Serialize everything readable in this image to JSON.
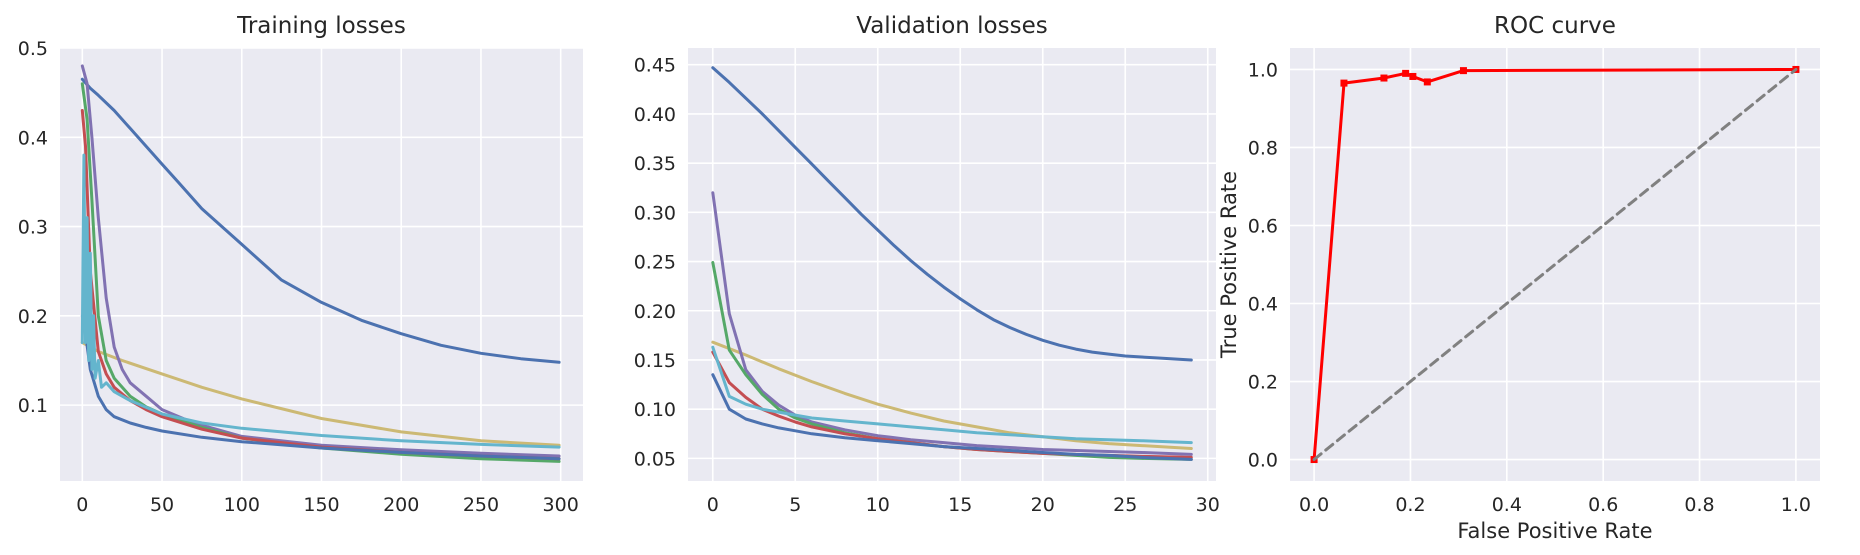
{
  "chart_data": [
    {
      "type": "line",
      "title": "Training losses",
      "xlabel": "",
      "ylabel": "",
      "xlim": [
        -14,
        314
      ],
      "ylim": [
        0.015,
        0.5
      ],
      "xticks": [
        0,
        50,
        100,
        150,
        200,
        250,
        300
      ],
      "yticks": [
        0.1,
        0.2,
        0.3,
        0.4,
        0.5
      ],
      "grid": true,
      "series": [
        {
          "color": "#4c72b0",
          "x": [
            0,
            5,
            10,
            20,
            30,
            40,
            50,
            60,
            75,
            100,
            125,
            150,
            175,
            200,
            225,
            250,
            275,
            299
          ],
          "values": [
            0.465,
            0.455,
            0.447,
            0.43,
            0.41,
            0.39,
            0.37,
            0.35,
            0.32,
            0.28,
            0.24,
            0.215,
            0.195,
            0.18,
            0.167,
            0.158,
            0.152,
            0.148
          ]
        },
        {
          "color": "#ccb974",
          "x": [
            0,
            10,
            25,
            50,
            75,
            100,
            150,
            200,
            250,
            299
          ],
          "values": [
            0.17,
            0.16,
            0.15,
            0.135,
            0.12,
            0.107,
            0.085,
            0.07,
            0.06,
            0.055
          ]
        },
        {
          "color": "#8172b2",
          "x": [
            0,
            3,
            6,
            10,
            15,
            20,
            25,
            30,
            40,
            50,
            70,
            100,
            150,
            200,
            250,
            299
          ],
          "values": [
            0.48,
            0.46,
            0.4,
            0.31,
            0.22,
            0.165,
            0.14,
            0.125,
            0.11,
            0.095,
            0.08,
            0.065,
            0.055,
            0.05,
            0.046,
            0.043
          ]
        },
        {
          "color": "#55a868",
          "x": [
            0,
            3,
            6,
            10,
            15,
            20,
            30,
            40,
            50,
            75,
            100,
            150,
            200,
            250,
            299
          ],
          "values": [
            0.46,
            0.42,
            0.33,
            0.2,
            0.15,
            0.13,
            0.11,
            0.098,
            0.09,
            0.075,
            0.063,
            0.052,
            0.045,
            0.04,
            0.037
          ]
        },
        {
          "color": "#c44e52",
          "x": [
            0,
            2,
            5,
            10,
            15,
            20,
            30,
            40,
            50,
            75,
            100,
            150,
            200,
            250,
            299
          ],
          "values": [
            0.43,
            0.39,
            0.25,
            0.16,
            0.135,
            0.12,
            0.105,
            0.095,
            0.087,
            0.073,
            0.063,
            0.053,
            0.047,
            0.043,
            0.04
          ]
        },
        {
          "color": "#4c72b0",
          "x": [
            0,
            2,
            5,
            10,
            15,
            20,
            30,
            40,
            50,
            75,
            100,
            150,
            200,
            250,
            299
          ],
          "values": [
            0.2,
            0.18,
            0.14,
            0.11,
            0.095,
            0.087,
            0.08,
            0.075,
            0.071,
            0.064,
            0.059,
            0.052,
            0.047,
            0.043,
            0.04
          ]
        },
        {
          "color": "#64b5cd",
          "x": [
            0,
            1,
            2,
            3,
            4,
            5,
            6,
            7,
            8,
            10,
            12,
            15,
            20,
            30,
            50,
            75,
            100,
            150,
            200,
            250,
            299
          ],
          "values": [
            0.17,
            0.38,
            0.17,
            0.31,
            0.15,
            0.27,
            0.14,
            0.2,
            0.13,
            0.15,
            0.12,
            0.125,
            0.115,
            0.105,
            0.09,
            0.08,
            0.074,
            0.066,
            0.06,
            0.056,
            0.053
          ]
        }
      ]
    },
    {
      "type": "line",
      "title": "Validation losses",
      "xlabel": "",
      "ylabel": "",
      "xlim": [
        -1.5,
        30.5
      ],
      "ylim": [
        0.027,
        0.467
      ],
      "xticks": [
        0,
        5,
        10,
        15,
        20,
        25,
        30
      ],
      "yticks": [
        0.05,
        0.1,
        0.15,
        0.2,
        0.25,
        0.3,
        0.35,
        0.4,
        0.45
      ],
      "grid": true,
      "series": [
        {
          "color": "#4c72b0",
          "x": [
            0,
            1,
            2,
            3,
            4,
            5,
            6,
            7,
            8,
            9,
            10,
            11,
            12,
            13,
            14,
            15,
            16,
            17,
            18,
            19,
            20,
            21,
            22,
            23,
            24,
            25,
            26,
            27,
            28,
            29
          ],
          "values": [
            0.447,
            0.432,
            0.416,
            0.4,
            0.383,
            0.366,
            0.349,
            0.332,
            0.315,
            0.298,
            0.282,
            0.266,
            0.251,
            0.237,
            0.224,
            0.212,
            0.201,
            0.191,
            0.183,
            0.176,
            0.17,
            0.165,
            0.161,
            0.158,
            0.156,
            0.154,
            0.153,
            0.152,
            0.151,
            0.15
          ]
        },
        {
          "color": "#ccb974",
          "x": [
            0,
            2,
            4,
            6,
            8,
            10,
            12,
            14,
            16,
            18,
            20,
            22,
            24,
            26,
            29
          ],
          "values": [
            0.168,
            0.155,
            0.141,
            0.128,
            0.116,
            0.105,
            0.096,
            0.088,
            0.082,
            0.076,
            0.072,
            0.068,
            0.065,
            0.063,
            0.06
          ]
        },
        {
          "color": "#8172b2",
          "x": [
            0,
            1,
            2,
            3,
            4,
            5,
            6,
            8,
            10,
            12,
            14,
            16,
            18,
            20,
            22,
            24,
            26,
            29
          ],
          "values": [
            0.32,
            0.197,
            0.14,
            0.118,
            0.104,
            0.094,
            0.087,
            0.079,
            0.073,
            0.069,
            0.066,
            0.063,
            0.061,
            0.059,
            0.058,
            0.057,
            0.056,
            0.054
          ]
        },
        {
          "color": "#55a868",
          "x": [
            0,
            1,
            2,
            3,
            4,
            5,
            6,
            8,
            10,
            12,
            14,
            16,
            18,
            20,
            22,
            24,
            26,
            29
          ],
          "values": [
            0.249,
            0.16,
            0.135,
            0.115,
            0.1,
            0.091,
            0.085,
            0.076,
            0.07,
            0.066,
            0.062,
            0.059,
            0.057,
            0.055,
            0.053,
            0.051,
            0.05,
            0.049
          ]
        },
        {
          "color": "#c44e52",
          "x": [
            0,
            1,
            2,
            3,
            4,
            5,
            6,
            8,
            10,
            12,
            14,
            16,
            18,
            20,
            22,
            24,
            26,
            29
          ],
          "values": [
            0.158,
            0.127,
            0.112,
            0.1,
            0.093,
            0.087,
            0.082,
            0.075,
            0.07,
            0.066,
            0.062,
            0.059,
            0.057,
            0.055,
            0.054,
            0.053,
            0.052,
            0.051
          ]
        },
        {
          "color": "#64b5cd",
          "x": [
            0,
            1,
            2,
            3,
            4,
            5,
            6,
            8,
            10,
            12,
            14,
            16,
            18,
            20,
            22,
            24,
            26,
            29
          ],
          "values": [
            0.163,
            0.113,
            0.105,
            0.1,
            0.097,
            0.094,
            0.091,
            0.088,
            0.085,
            0.082,
            0.079,
            0.076,
            0.074,
            0.072,
            0.07,
            0.069,
            0.068,
            0.066
          ]
        },
        {
          "color": "#4c72b0",
          "x": [
            0,
            1,
            2,
            3,
            4,
            5,
            6,
            8,
            10,
            12,
            14,
            16,
            18,
            20,
            22,
            24,
            26,
            29
          ],
          "values": [
            0.135,
            0.1,
            0.09,
            0.085,
            0.081,
            0.078,
            0.075,
            0.071,
            0.068,
            0.065,
            0.062,
            0.06,
            0.058,
            0.056,
            0.054,
            0.053,
            0.051,
            0.049
          ]
        }
      ]
    },
    {
      "type": "line",
      "title": "ROC curve",
      "xlabel": "False Positive Rate",
      "ylabel": "True Positive Rate",
      "xlim": [
        -0.05,
        1.05
      ],
      "ylim": [
        -0.055,
        1.055
      ],
      "xticks": [
        0.0,
        0.2,
        0.4,
        0.6,
        0.8,
        1.0
      ],
      "yticks": [
        0.0,
        0.2,
        0.4,
        0.6,
        0.8,
        1.0
      ],
      "grid": true,
      "series": [
        {
          "color": "#ff0000",
          "markers": true,
          "x": [
            0.0,
            0.062,
            0.145,
            0.19,
            0.205,
            0.235,
            0.31,
            1.0
          ],
          "values": [
            0.0,
            0.965,
            0.978,
            0.99,
            0.982,
            0.968,
            0.997,
            1.0
          ]
        },
        {
          "color": "#808080",
          "dashed": true,
          "x": [
            0.0,
            1.0
          ],
          "values": [
            0.0,
            1.0
          ]
        }
      ]
    }
  ]
}
